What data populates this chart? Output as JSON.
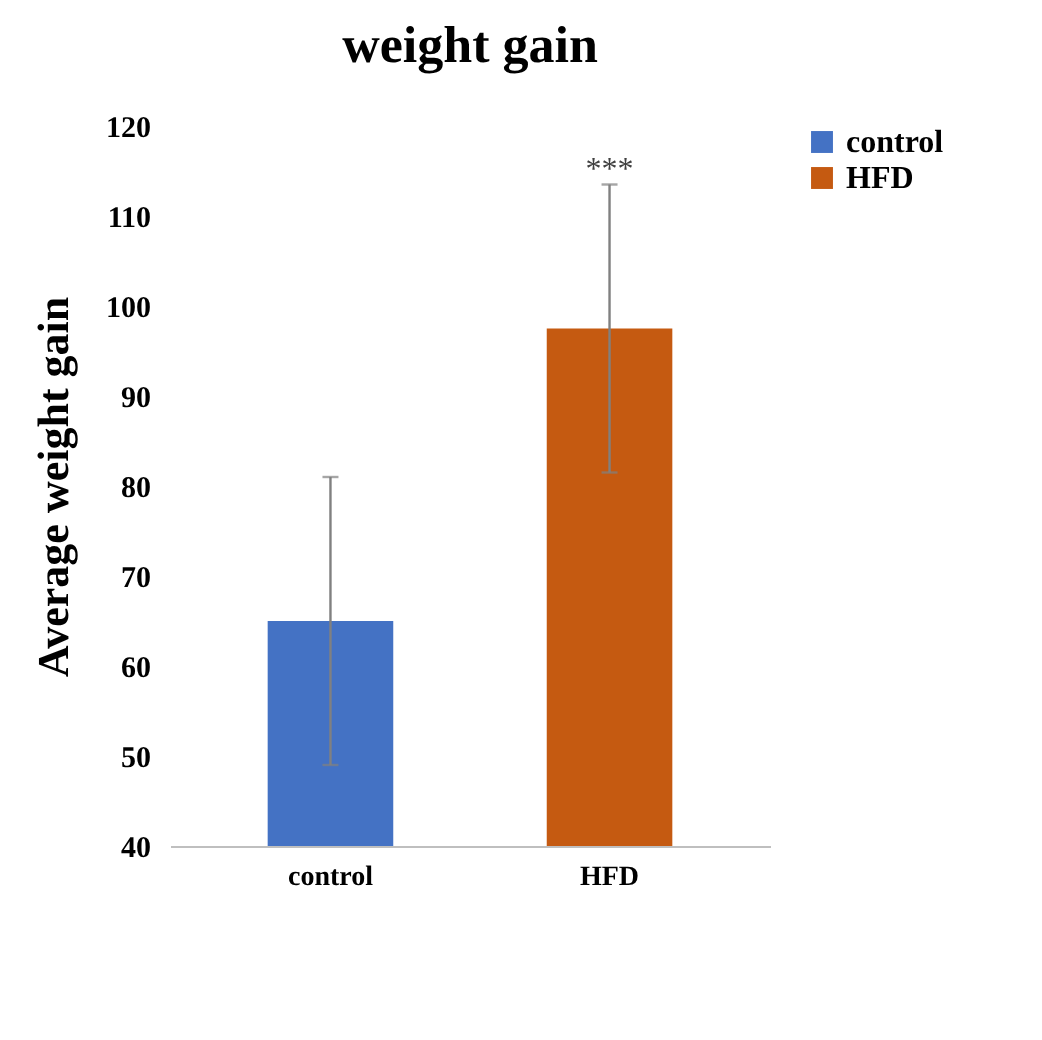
{
  "chart_data": {
    "type": "bar",
    "title": "weight gain",
    "ylabel": "Average weight gain",
    "categories": [
      "control",
      "HFD"
    ],
    "series": [
      {
        "name": "control",
        "color": "#4472c4",
        "values": [
          65,
          null
        ],
        "errors": [
          16,
          null
        ]
      },
      {
        "name": "HFD",
        "color": "#c55a11",
        "values": [
          null,
          97.5
        ],
        "errors": [
          null,
          16
        ]
      }
    ],
    "ylim": [
      40,
      120
    ],
    "yticks": [
      40,
      50,
      60,
      70,
      80,
      90,
      100,
      110,
      120
    ],
    "grid": false,
    "legend": "right",
    "annotations": [
      "***"
    ]
  }
}
